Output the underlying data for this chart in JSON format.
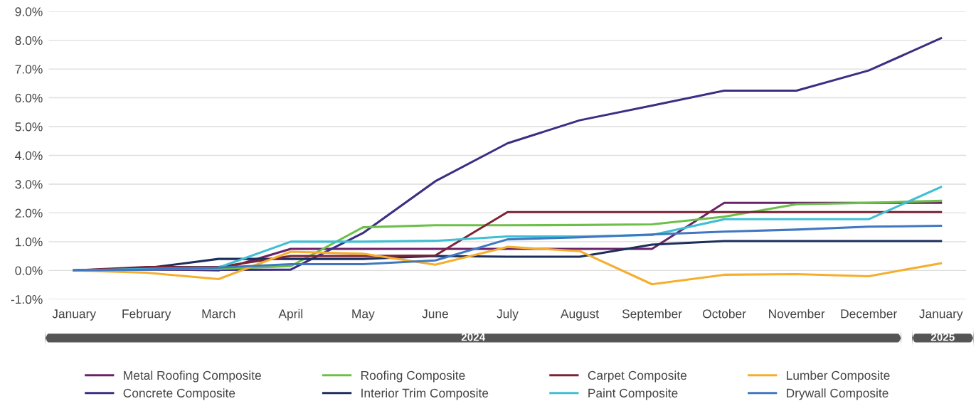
{
  "chart_data": {
    "type": "line",
    "categories": [
      "January",
      "February",
      "March",
      "April",
      "May",
      "June",
      "July",
      "August",
      "September",
      "October",
      "November",
      "December",
      "January"
    ],
    "series": [
      {
        "name": "Metal Roofing Composite",
        "color": "#6b2367",
        "values": [
          0,
          0.05,
          0,
          0.75,
          0.75,
          0.75,
          0.75,
          0.75,
          0.75,
          2.35,
          2.35,
          2.35,
          2.35
        ]
      },
      {
        "name": "Concrete Composite",
        "color": "#3b2f83",
        "values": [
          0,
          0.03,
          0.02,
          0.03,
          1.3,
          3.1,
          4.42,
          5.22,
          5.73,
          6.25,
          6.25,
          6.95,
          8.07
        ]
      },
      {
        "name": "Roofing Composite",
        "color": "#6cc04a",
        "values": [
          0,
          0.05,
          0.05,
          0.15,
          1.5,
          1.57,
          1.57,
          1.58,
          1.6,
          1.87,
          2.3,
          2.35,
          2.42
        ]
      },
      {
        "name": "Interior Trim Composite",
        "color": "#1c2e5b",
        "values": [
          0,
          0.08,
          0.4,
          0.4,
          0.4,
          0.5,
          0.48,
          0.48,
          0.9,
          1.02,
          1.02,
          1.02,
          1.02
        ]
      },
      {
        "name": "Carpet Composite",
        "color": "#7b2436",
        "values": [
          0,
          0.12,
          0.12,
          0.5,
          0.5,
          0.52,
          2.03,
          2.03,
          2.03,
          2.03,
          2.03,
          2.03,
          2.03
        ]
      },
      {
        "name": "Paint Composite",
        "color": "#3fbfd3",
        "values": [
          0,
          0.05,
          0.1,
          1.0,
          1.0,
          1.03,
          1.18,
          1.18,
          1.23,
          1.78,
          1.78,
          1.78,
          2.9
        ]
      },
      {
        "name": "Lumber Composite",
        "color": "#f5ae2d",
        "values": [
          0,
          -0.08,
          -0.3,
          0.65,
          0.58,
          0.2,
          0.82,
          0.67,
          -0.48,
          -0.15,
          -0.13,
          -0.2,
          0.25
        ]
      },
      {
        "name": "Drywall Composite",
        "color": "#3f78c1",
        "values": [
          0,
          0.03,
          0.1,
          0.22,
          0.22,
          0.35,
          1.08,
          1.15,
          1.25,
          1.35,
          1.42,
          1.52,
          1.55
        ]
      }
    ],
    "ylim": [
      -1,
      9
    ],
    "yticks": [
      {
        "value": -1,
        "label": "-1.0%"
      },
      {
        "value": 0,
        "label": "0.0%"
      },
      {
        "value": 1,
        "label": "1.0%"
      },
      {
        "value": 2,
        "label": "2.0%"
      },
      {
        "value": 3,
        "label": "3.0%"
      },
      {
        "value": 4,
        "label": "4.0%"
      },
      {
        "value": 5,
        "label": "5.0%"
      },
      {
        "value": 6,
        "label": "6.0%"
      },
      {
        "value": 7,
        "label": "7.0%"
      },
      {
        "value": 8,
        "label": "8.0%"
      },
      {
        "value": 9,
        "label": "9.0%"
      }
    ],
    "annotations": [
      "2024",
      "2025"
    ],
    "grid": "y",
    "legend": "bottom",
    "marker": "none",
    "line_style": "solid"
  }
}
